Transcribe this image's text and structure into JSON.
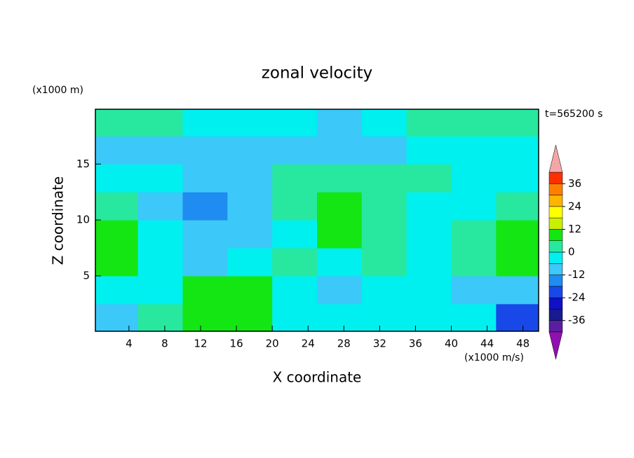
{
  "chart_data": {
    "type": "contour",
    "title": "zonal velocity",
    "xlabel": "X coordinate",
    "ylabel": "Z coordinate",
    "y_units": "(x1000 m)",
    "colorbar_units": "(x1000 m/s)",
    "annotation": "t=565200 s",
    "xlim": [
      0.25,
      49.75
    ],
    "ylim": [
      0.05,
      19.9
    ],
    "xticks": [
      4,
      8,
      12,
      16,
      20,
      24,
      28,
      32,
      36,
      40,
      44,
      48
    ],
    "yticks": [
      5,
      10,
      15
    ],
    "x_bins": [
      0.25,
      5,
      10,
      15,
      20,
      25,
      30,
      35,
      40,
      45,
      49.75
    ],
    "z_bins": [
      0.05,
      2.5,
      5,
      7.5,
      10,
      12.5,
      15,
      17.5,
      19.9
    ],
    "values": [
      [
        -12,
        3,
        9,
        9,
        -3,
        -3,
        -3,
        -3,
        -3,
        -20
      ],
      [
        -3,
        -3,
        9,
        9,
        -3,
        -9,
        -3,
        -3,
        -9,
        -9
      ],
      [
        9,
        -3,
        -9,
        -3,
        3,
        -3,
        3,
        -3,
        3,
        9
      ],
      [
        9,
        -3,
        -9,
        -9,
        -3,
        9,
        3,
        -3,
        3,
        9
      ],
      [
        3,
        -9,
        -15,
        -9,
        3,
        9,
        3,
        -3,
        -3,
        3
      ],
      [
        -3,
        -3,
        -9,
        -9,
        3,
        3,
        3,
        3,
        -3,
        -3
      ],
      [
        -9,
        -9,
        -9,
        -9,
        -9,
        -9,
        -9,
        -3,
        -3,
        -3
      ],
      [
        3,
        3,
        -3,
        -3,
        -3,
        -9,
        -3,
        3,
        3,
        3
      ]
    ],
    "levels": [
      -42,
      -36,
      -30,
      -24,
      -18,
      -12,
      -6,
      0,
      6,
      12,
      18,
      24,
      30,
      36,
      42
    ],
    "colors": [
      "#5a1ea0",
      "#1a1a90",
      "#1010c8",
      "#1848e8",
      "#1e8cf0",
      "#3cc8f8",
      "#00f0f0",
      "#28e8a0",
      "#14e614",
      "#c8f000",
      "#ffff00",
      "#ffb400",
      "#ff8000",
      "#ff3000"
    ],
    "under_color": "#9010b0",
    "over_color": "#f4a6a6",
    "colorbar_ticks": [
      36,
      24,
      12,
      0,
      -12,
      -24,
      -36
    ]
  }
}
